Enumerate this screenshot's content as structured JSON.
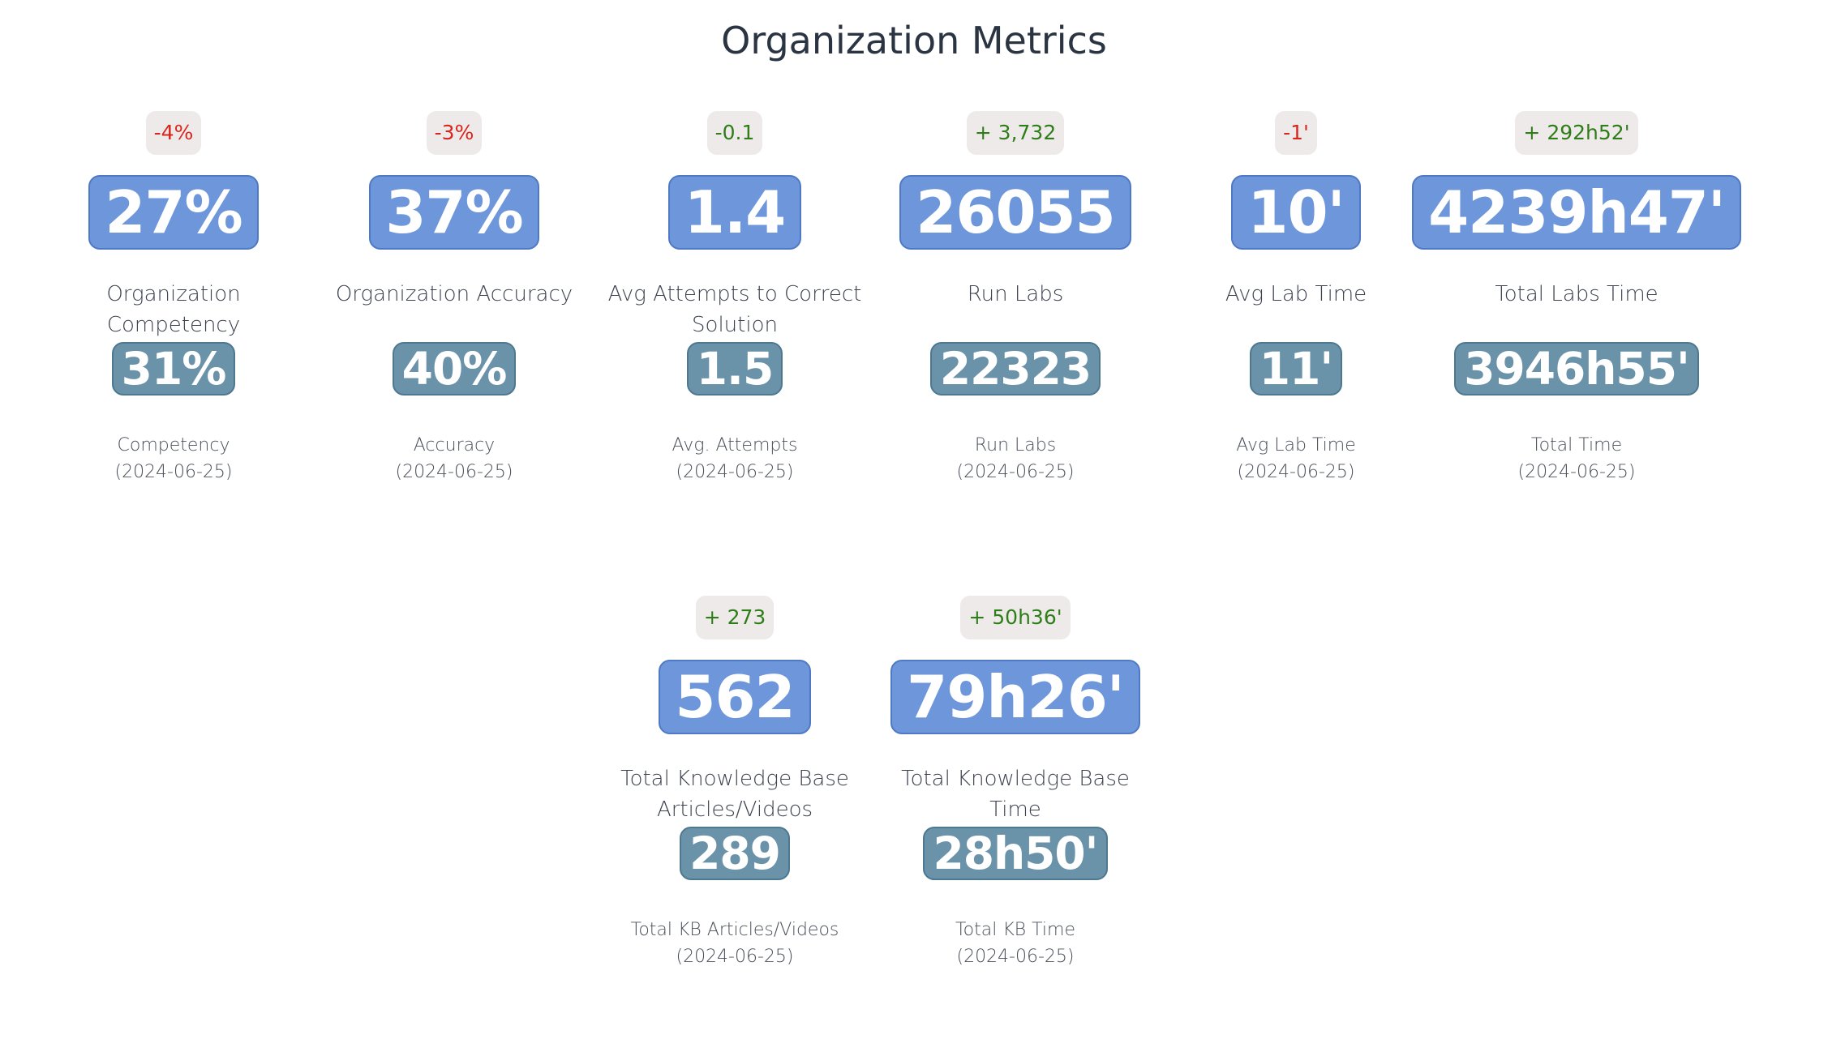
{
  "page": {
    "title": "Organization Metrics"
  },
  "metrics": [
    {
      "delta": "-4%",
      "delta_sign": "neg",
      "value": "27%",
      "label": "Organization Competency",
      "prev_value": "31%",
      "prev_label": "Competency",
      "prev_date": "(2024-06-25)"
    },
    {
      "delta": "-3%",
      "delta_sign": "neg",
      "value": "37%",
      "label": "Organization Accuracy",
      "prev_value": "40%",
      "prev_label": "Accuracy",
      "prev_date": "(2024-06-25)"
    },
    {
      "delta": "-0.1",
      "delta_sign": "neu",
      "value": "1.4",
      "label": "Avg Attempts to Correct Solution",
      "prev_value": "1.5",
      "prev_label": "Avg. Attempts",
      "prev_date": "(2024-06-25)"
    },
    {
      "delta": "+ 3,732",
      "delta_sign": "pos",
      "value": "26055",
      "label": "Run Labs",
      "prev_value": "22323",
      "prev_label": "Run Labs",
      "prev_date": "(2024-06-25)"
    },
    {
      "delta": "-1'",
      "delta_sign": "neg",
      "value": "10'",
      "label": "Avg Lab Time",
      "prev_value": "11'",
      "prev_label": "Avg Lab Time",
      "prev_date": "(2024-06-25)"
    },
    {
      "delta": "+ 292h52'",
      "delta_sign": "pos",
      "value": "4239h47'",
      "label": "Total Labs Time",
      "prev_value": "3946h55'",
      "prev_label": "Total Time",
      "prev_date": "(2024-06-25)"
    },
    {
      "delta": "+ 273",
      "delta_sign": "pos",
      "value": "562",
      "label": "Total Knowledge Base Articles/Videos",
      "prev_value": "289",
      "prev_label": "Total KB Articles/Videos",
      "prev_date": "(2024-06-25)"
    },
    {
      "delta": "+ 50h36'",
      "delta_sign": "pos",
      "value": "79h26'",
      "label": "Total Knowledge Base Time",
      "prev_value": "28h50'",
      "prev_label": "Total KB Time",
      "prev_date": "(2024-06-25)"
    }
  ],
  "colors": {
    "main_value_bg": "#6d96db",
    "prev_value_bg": "#6a92a9",
    "delta_bg": "#eeeae9",
    "negative": "#d9261c",
    "positive": "#2e7d18"
  }
}
